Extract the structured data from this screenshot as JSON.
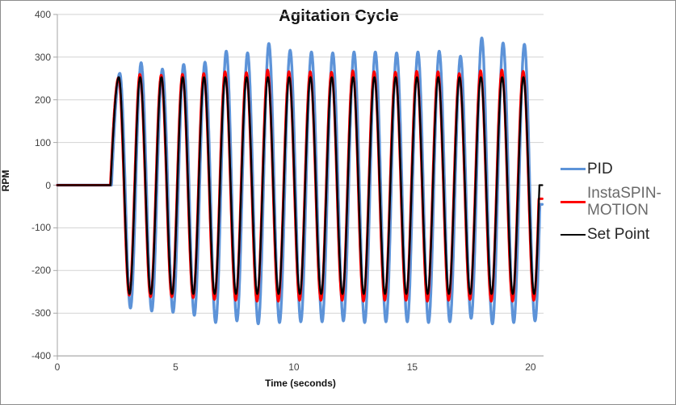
{
  "window": {
    "border_color": "#8C8C8C",
    "background": "#FFFFFF"
  },
  "chart_data": {
    "type": "line",
    "title": "Agitation Cycle",
    "xlabel": "Time (seconds)",
    "ylabel": "RPM",
    "xlim": [
      0,
      20.55
    ],
    "ylim": [
      -400,
      400
    ],
    "xticks": [
      0,
      5,
      10,
      15,
      20
    ],
    "yticks": [
      400,
      300,
      200,
      100,
      0,
      -100,
      -200,
      -300,
      -400
    ],
    "grid": "horizontal",
    "legend_position": "right",
    "colors": {
      "grid": "#D3D3D3",
      "axis": "#A6A6A6",
      "tick_text": "#3F3F3F",
      "title_text": "#111111"
    },
    "waveform": {
      "description": "All series flat at 0 RPM until start_time, then sinusoidal agitation cycles, returning toward 0 at the end",
      "flat_value": 0,
      "start_time": 2.25,
      "first_rise_s": 0.35,
      "period_s": 0.9,
      "cycles": 20,
      "trace_end_time": 20.5
    },
    "series": [
      {
        "name": "PID",
        "color": "#5D93D8",
        "line_width": 3.4,
        "lag_s": 0.04,
        "tail_value": -45,
        "peaks": [
          262,
          287,
          272,
          283,
          288,
          314,
          310,
          332,
          316,
          312,
          310,
          312,
          312,
          310,
          312,
          314,
          302,
          345,
          333,
          330
        ],
        "troughs": [
          -288,
          -295,
          -298,
          -305,
          -322,
          -318,
          -325,
          -322,
          -320,
          -320,
          -318,
          -322,
          -320,
          -320,
          -322,
          -320,
          -312,
          -325,
          -322,
          -318
        ]
      },
      {
        "name": "InstaSPIN-MOTION",
        "color": "#FE0000",
        "line_width": 3.0,
        "lag_s": -0.012,
        "tail_value": -32,
        "peaks": [
          252,
          260,
          258,
          260,
          262,
          266,
          264,
          270,
          266,
          266,
          265,
          268,
          266,
          265,
          267,
          266,
          262,
          268,
          270,
          267
        ],
        "troughs": [
          -258,
          -262,
          -262,
          -264,
          -268,
          -270,
          -272,
          -272,
          -270,
          -270,
          -270,
          -272,
          -270,
          -270,
          -272,
          -270,
          -268,
          -272,
          -272,
          -270
        ]
      },
      {
        "name": "Set Point",
        "color": "#000000",
        "line_width": 2.3,
        "lag_s": 0,
        "tail_value": 0,
        "peaks": [
          253,
          253,
          253,
          253,
          253,
          253,
          253,
          253,
          253,
          253,
          253,
          253,
          253,
          253,
          253,
          253,
          253,
          253,
          253,
          253
        ],
        "troughs": [
          -255,
          -255,
          -255,
          -255,
          -255,
          -255,
          -255,
          -255,
          -255,
          -255,
          -255,
          -255,
          -255,
          -255,
          -255,
          -255,
          -255,
          -255,
          -255,
          -255
        ]
      }
    ],
    "legend": [
      {
        "label": "PID",
        "text_color": "#262626"
      },
      {
        "label": "InstaSPIN-MOTION",
        "text_color": "#6A6A6A"
      },
      {
        "label": "Set Point",
        "text_color": "#262626"
      }
    ]
  }
}
